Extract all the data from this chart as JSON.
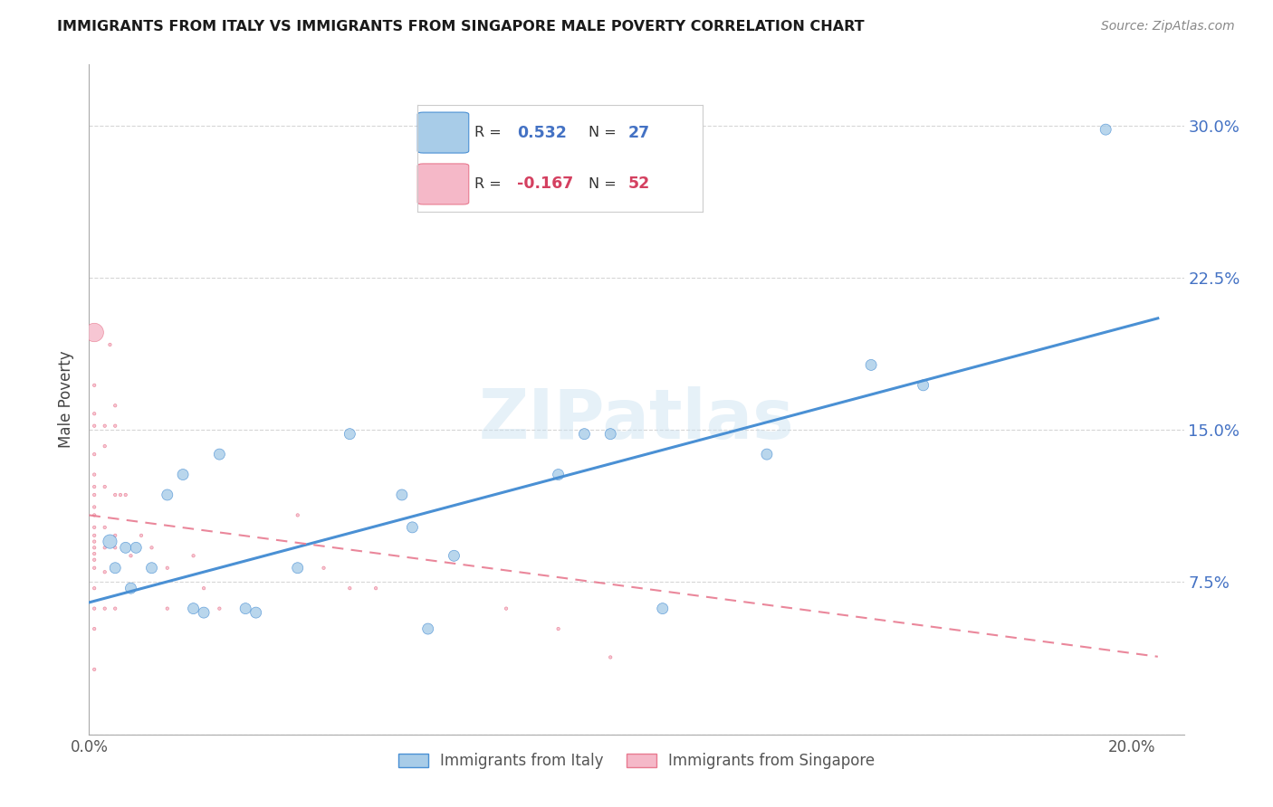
{
  "title": "IMMIGRANTS FROM ITALY VS IMMIGRANTS FROM SINGAPORE MALE POVERTY CORRELATION CHART",
  "source": "Source: ZipAtlas.com",
  "ylabel": "Male Poverty",
  "xlim": [
    0.0,
    0.21
  ],
  "ylim": [
    0.0,
    0.33
  ],
  "xticks": [
    0.0,
    0.05,
    0.1,
    0.15,
    0.2
  ],
  "yticks": [
    0.0,
    0.075,
    0.15,
    0.225,
    0.3
  ],
  "xticklabels": [
    "0.0%",
    "",
    "",
    "",
    "20.0%"
  ],
  "yticklabels_right": [
    "",
    "7.5%",
    "15.0%",
    "22.5%",
    "30.0%"
  ],
  "italy_R": 0.532,
  "italy_N": 27,
  "singapore_R": -0.167,
  "singapore_N": 52,
  "italy_color": "#a8cce8",
  "singapore_color": "#f5b8c8",
  "italy_line_color": "#4a90d4",
  "singapore_line_color": "#e87a90",
  "watermark": "ZIPatlas",
  "italy_points": [
    [
      0.004,
      0.095
    ],
    [
      0.005,
      0.082
    ],
    [
      0.007,
      0.092
    ],
    [
      0.008,
      0.072
    ],
    [
      0.009,
      0.092
    ],
    [
      0.012,
      0.082
    ],
    [
      0.015,
      0.118
    ],
    [
      0.018,
      0.128
    ],
    [
      0.02,
      0.062
    ],
    [
      0.022,
      0.06
    ],
    [
      0.025,
      0.138
    ],
    [
      0.03,
      0.062
    ],
    [
      0.032,
      0.06
    ],
    [
      0.04,
      0.082
    ],
    [
      0.05,
      0.148
    ],
    [
      0.06,
      0.118
    ],
    [
      0.062,
      0.102
    ],
    [
      0.065,
      0.052
    ],
    [
      0.07,
      0.088
    ],
    [
      0.09,
      0.128
    ],
    [
      0.095,
      0.148
    ],
    [
      0.1,
      0.148
    ],
    [
      0.11,
      0.062
    ],
    [
      0.13,
      0.138
    ],
    [
      0.15,
      0.182
    ],
    [
      0.16,
      0.172
    ],
    [
      0.195,
      0.298
    ]
  ],
  "italy_sizes": [
    80,
    50,
    50,
    50,
    50,
    50,
    50,
    50,
    50,
    50,
    50,
    50,
    50,
    50,
    50,
    50,
    50,
    50,
    50,
    50,
    50,
    50,
    50,
    50,
    50,
    50,
    50
  ],
  "singapore_points": [
    [
      0.001,
      0.198
    ],
    [
      0.001,
      0.172
    ],
    [
      0.001,
      0.158
    ],
    [
      0.001,
      0.152
    ],
    [
      0.001,
      0.138
    ],
    [
      0.001,
      0.128
    ],
    [
      0.001,
      0.122
    ],
    [
      0.001,
      0.118
    ],
    [
      0.001,
      0.112
    ],
    [
      0.001,
      0.108
    ],
    [
      0.001,
      0.102
    ],
    [
      0.001,
      0.098
    ],
    [
      0.001,
      0.095
    ],
    [
      0.001,
      0.092
    ],
    [
      0.001,
      0.089
    ],
    [
      0.001,
      0.086
    ],
    [
      0.001,
      0.082
    ],
    [
      0.001,
      0.072
    ],
    [
      0.001,
      0.062
    ],
    [
      0.001,
      0.052
    ],
    [
      0.001,
      0.032
    ],
    [
      0.003,
      0.152
    ],
    [
      0.003,
      0.142
    ],
    [
      0.003,
      0.122
    ],
    [
      0.003,
      0.102
    ],
    [
      0.003,
      0.092
    ],
    [
      0.003,
      0.08
    ],
    [
      0.003,
      0.062
    ],
    [
      0.004,
      0.192
    ],
    [
      0.005,
      0.162
    ],
    [
      0.005,
      0.152
    ],
    [
      0.005,
      0.118
    ],
    [
      0.005,
      0.098
    ],
    [
      0.005,
      0.092
    ],
    [
      0.005,
      0.062
    ],
    [
      0.006,
      0.118
    ],
    [
      0.007,
      0.118
    ],
    [
      0.008,
      0.088
    ],
    [
      0.01,
      0.098
    ],
    [
      0.012,
      0.092
    ],
    [
      0.015,
      0.082
    ],
    [
      0.015,
      0.062
    ],
    [
      0.02,
      0.088
    ],
    [
      0.022,
      0.072
    ],
    [
      0.025,
      0.062
    ],
    [
      0.04,
      0.108
    ],
    [
      0.045,
      0.082
    ],
    [
      0.05,
      0.072
    ],
    [
      0.055,
      0.072
    ],
    [
      0.08,
      0.062
    ],
    [
      0.09,
      0.052
    ],
    [
      0.1,
      0.038
    ]
  ],
  "singapore_sizes": [
    1800,
    50,
    50,
    50,
    50,
    50,
    50,
    50,
    50,
    50,
    50,
    50,
    50,
    50,
    50,
    50,
    50,
    50,
    50,
    50,
    50,
    50,
    50,
    50,
    50,
    50,
    50,
    50,
    50,
    50,
    50,
    50,
    50,
    50,
    50,
    50,
    50,
    50,
    50,
    50,
    50,
    50,
    50,
    50,
    50,
    50,
    50,
    50,
    50,
    50,
    50,
    50
  ]
}
